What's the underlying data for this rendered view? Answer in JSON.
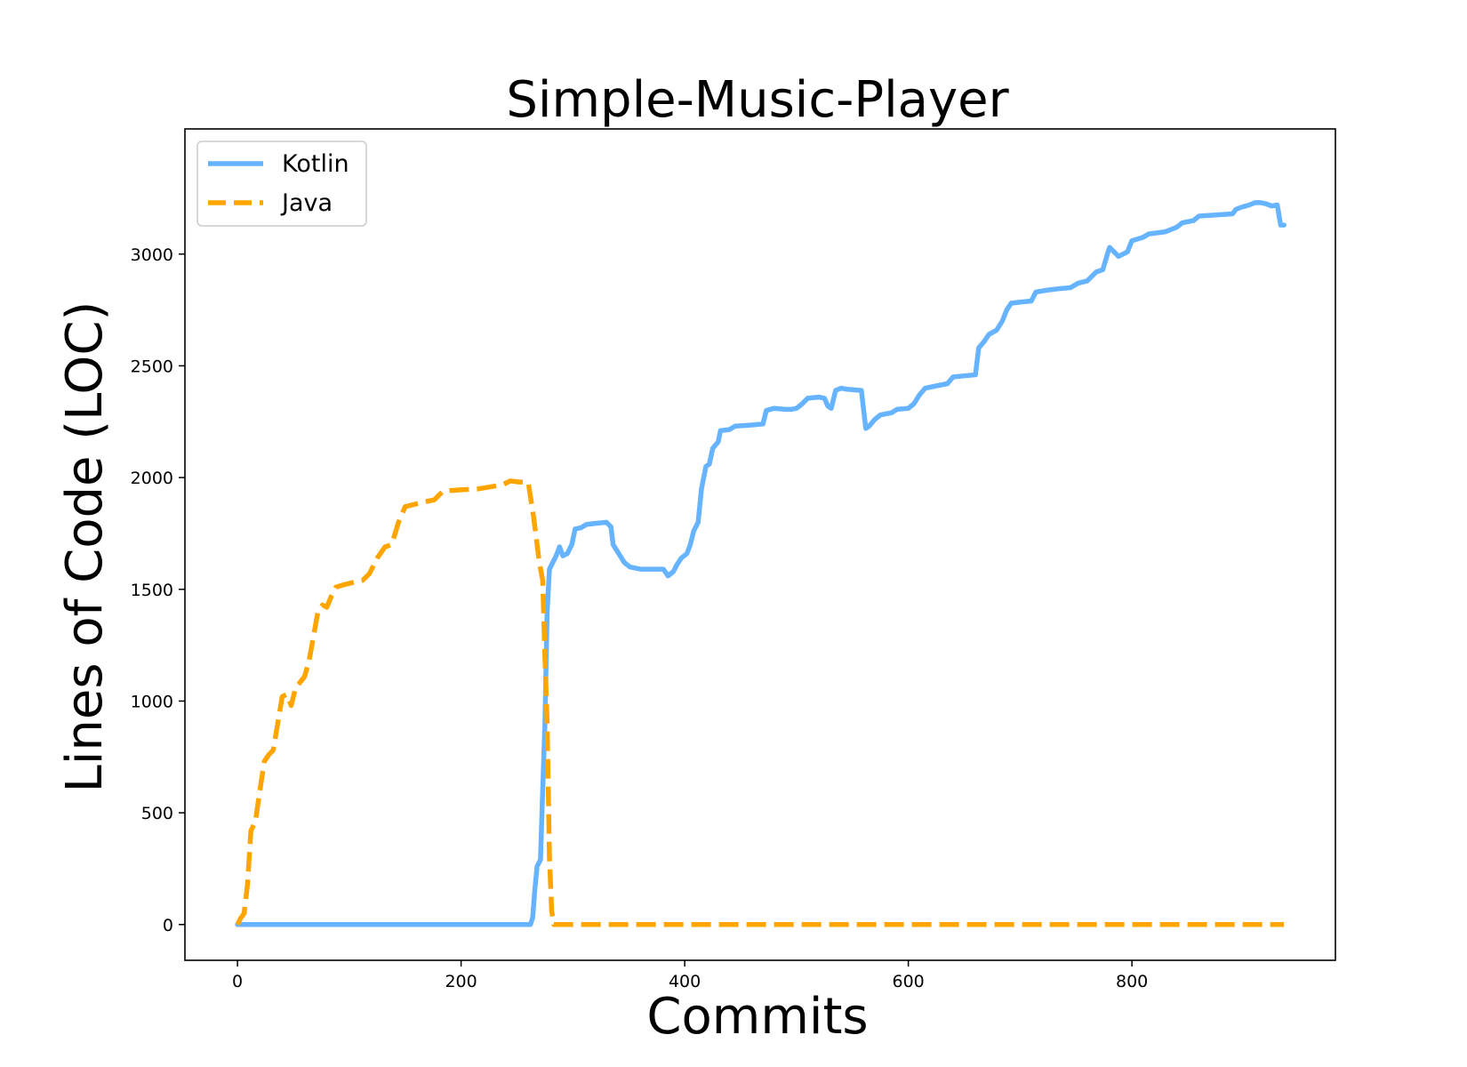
{
  "chart_data": {
    "type": "line",
    "title": "Simple-Music-Player",
    "xlabel": "Commits",
    "ylabel": "Lines of Code (LOC)",
    "xlim": [
      -47,
      982
    ],
    "ylim": [
      -160,
      3560
    ],
    "xticks": [
      0,
      200,
      400,
      600,
      800
    ],
    "yticks": [
      0,
      500,
      1000,
      1500,
      2000,
      2500,
      3000
    ],
    "legend_position": "upper-left",
    "grid": false,
    "series": [
      {
        "name": "Kotlin",
        "color": "#66b3ff",
        "style": "solid",
        "points": [
          [
            0,
            0
          ],
          [
            262,
            0
          ],
          [
            264,
            30
          ],
          [
            266,
            160
          ],
          [
            268,
            260
          ],
          [
            271,
            290
          ],
          [
            273,
            600
          ],
          [
            275,
            900
          ],
          [
            277,
            1400
          ],
          [
            279,
            1590
          ],
          [
            282,
            1620
          ],
          [
            285,
            1650
          ],
          [
            288,
            1690
          ],
          [
            291,
            1650
          ],
          [
            295,
            1660
          ],
          [
            299,
            1700
          ],
          [
            302,
            1770
          ],
          [
            307,
            1775
          ],
          [
            312,
            1790
          ],
          [
            320,
            1795
          ],
          [
            330,
            1800
          ],
          [
            334,
            1780
          ],
          [
            336,
            1700
          ],
          [
            341,
            1660
          ],
          [
            346,
            1620
          ],
          [
            351,
            1600
          ],
          [
            360,
            1590
          ],
          [
            370,
            1590
          ],
          [
            381,
            1590
          ],
          [
            385,
            1560
          ],
          [
            390,
            1580
          ],
          [
            393,
            1610
          ],
          [
            397,
            1640
          ],
          [
            402,
            1660
          ],
          [
            405,
            1700
          ],
          [
            408,
            1760
          ],
          [
            412,
            1800
          ],
          [
            415,
            1950
          ],
          [
            419,
            2050
          ],
          [
            422,
            2060
          ],
          [
            425,
            2130
          ],
          [
            430,
            2160
          ],
          [
            432,
            2210
          ],
          [
            440,
            2215
          ],
          [
            445,
            2230
          ],
          [
            460,
            2235
          ],
          [
            470,
            2240
          ],
          [
            473,
            2300
          ],
          [
            480,
            2310
          ],
          [
            490,
            2305
          ],
          [
            495,
            2305
          ],
          [
            500,
            2310
          ],
          [
            505,
            2330
          ],
          [
            510,
            2355
          ],
          [
            520,
            2360
          ],
          [
            525,
            2355
          ],
          [
            528,
            2320
          ],
          [
            531,
            2310
          ],
          [
            535,
            2390
          ],
          [
            540,
            2400
          ],
          [
            545,
            2395
          ],
          [
            558,
            2390
          ],
          [
            562,
            2220
          ],
          [
            565,
            2230
          ],
          [
            570,
            2260
          ],
          [
            575,
            2280
          ],
          [
            585,
            2290
          ],
          [
            590,
            2305
          ],
          [
            600,
            2310
          ],
          [
            605,
            2330
          ],
          [
            610,
            2370
          ],
          [
            615,
            2400
          ],
          [
            625,
            2410
          ],
          [
            635,
            2420
          ],
          [
            640,
            2450
          ],
          [
            650,
            2455
          ],
          [
            660,
            2460
          ],
          [
            663,
            2580
          ],
          [
            668,
            2610
          ],
          [
            672,
            2640
          ],
          [
            679,
            2660
          ],
          [
            684,
            2700
          ],
          [
            688,
            2750
          ],
          [
            692,
            2780
          ],
          [
            700,
            2785
          ],
          [
            710,
            2790
          ],
          [
            714,
            2830
          ],
          [
            720,
            2835
          ],
          [
            726,
            2840
          ],
          [
            735,
            2845
          ],
          [
            745,
            2850
          ],
          [
            752,
            2870
          ],
          [
            760,
            2880
          ],
          [
            768,
            2920
          ],
          [
            774,
            2930
          ],
          [
            778,
            3000
          ],
          [
            780,
            3030
          ],
          [
            784,
            3010
          ],
          [
            788,
            2990
          ],
          [
            792,
            3000
          ],
          [
            796,
            3010
          ],
          [
            800,
            3060
          ],
          [
            810,
            3075
          ],
          [
            815,
            3090
          ],
          [
            830,
            3100
          ],
          [
            840,
            3120
          ],
          [
            845,
            3140
          ],
          [
            855,
            3150
          ],
          [
            860,
            3170
          ],
          [
            875,
            3175
          ],
          [
            890,
            3180
          ],
          [
            893,
            3200
          ],
          [
            898,
            3210
          ],
          [
            905,
            3220
          ],
          [
            910,
            3230
          ],
          [
            915,
            3230
          ],
          [
            920,
            3225
          ],
          [
            925,
            3215
          ],
          [
            930,
            3220
          ],
          [
            933,
            3130
          ],
          [
            936,
            3130
          ]
        ]
      },
      {
        "name": "Java",
        "color": "#ffa500",
        "style": "dashed",
        "points": [
          [
            0,
            0
          ],
          [
            3,
            30
          ],
          [
            6,
            50
          ],
          [
            9,
            180
          ],
          [
            12,
            420
          ],
          [
            16,
            460
          ],
          [
            20,
            600
          ],
          [
            24,
            730
          ],
          [
            28,
            760
          ],
          [
            32,
            780
          ],
          [
            36,
            900
          ],
          [
            40,
            1020
          ],
          [
            44,
            1030
          ],
          [
            48,
            980
          ],
          [
            52,
            1060
          ],
          [
            57,
            1090
          ],
          [
            60,
            1110
          ],
          [
            64,
            1180
          ],
          [
            68,
            1290
          ],
          [
            72,
            1400
          ],
          [
            76,
            1430
          ],
          [
            80,
            1420
          ],
          [
            84,
            1470
          ],
          [
            88,
            1510
          ],
          [
            95,
            1520
          ],
          [
            103,
            1530
          ],
          [
            112,
            1540
          ],
          [
            118,
            1570
          ],
          [
            125,
            1640
          ],
          [
            132,
            1690
          ],
          [
            138,
            1700
          ],
          [
            144,
            1800
          ],
          [
            150,
            1870
          ],
          [
            158,
            1880
          ],
          [
            166,
            1890
          ],
          [
            176,
            1900
          ],
          [
            184,
            1940
          ],
          [
            200,
            1945
          ],
          [
            216,
            1950
          ],
          [
            228,
            1960
          ],
          [
            238,
            1970
          ],
          [
            244,
            1985
          ],
          [
            252,
            1980
          ],
          [
            260,
            1980
          ],
          [
            265,
            1820
          ],
          [
            268,
            1700
          ],
          [
            270,
            1620
          ],
          [
            273,
            1540
          ],
          [
            275,
            1200
          ],
          [
            277,
            900
          ],
          [
            279,
            300
          ],
          [
            281,
            60
          ],
          [
            283,
            0
          ],
          [
            936,
            0
          ]
        ]
      }
    ]
  }
}
